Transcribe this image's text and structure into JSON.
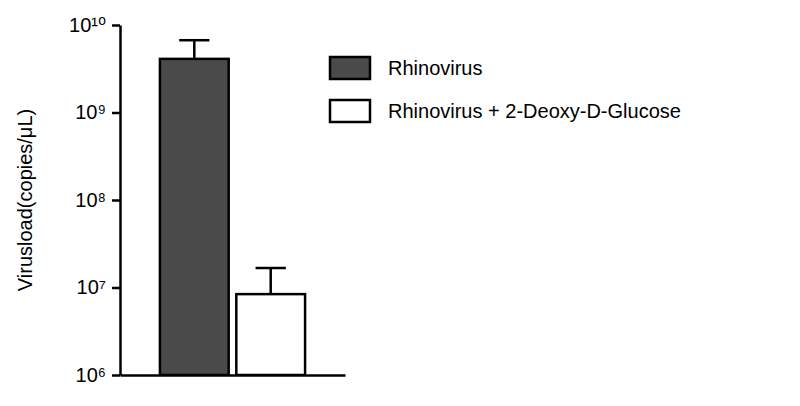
{
  "chart_data": {
    "type": "bar",
    "y_label": "Virusload(copies/μL)",
    "categories": [
      null
    ],
    "series": [
      {
        "name": "Rhinovirus",
        "color": "#4a4a4a",
        "values": [
          4100000000
        ],
        "error": [
          2600000000
        ]
      },
      {
        "name": "Rhinovirus + 2-Deoxy-D-Glucose",
        "color": "#ffffff",
        "values": [
          8400000
        ],
        "error": [
          8300000
        ]
      }
    ],
    "log": "y",
    "ylim": [
      1000000,
      10000000000
    ],
    "yticks": [
      {
        "value": 1000000,
        "label": "10⁶"
      },
      {
        "value": 10000000,
        "label": "10⁷"
      },
      {
        "value": 100000000,
        "label": "10⁸"
      },
      {
        "value": 1000000000,
        "label": "10⁹"
      },
      {
        "value": 10000000000,
        "label": "10¹⁰"
      }
    ],
    "grid": false,
    "legend": "right"
  }
}
